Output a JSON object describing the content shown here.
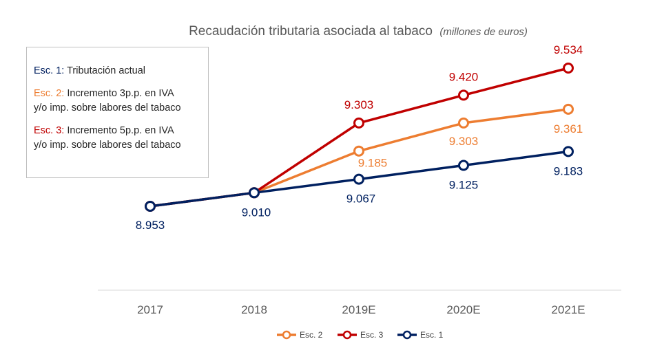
{
  "chart_data": {
    "type": "line",
    "title": "Recaudación tributaria asociada al tabaco",
    "subtitle": "(millones de euros)",
    "categories": [
      "2017",
      "2018",
      "2019E",
      "2020E",
      "2021E"
    ],
    "ylim": [
      8700,
      9600
    ],
    "grid": false,
    "series": [
      {
        "name": "Esc. 2",
        "color": "#ED7D31",
        "values": [
          8953,
          9010,
          9185,
          9303,
          9361
        ],
        "labels": [
          null,
          null,
          "9.185",
          "9.303",
          "9.361"
        ]
      },
      {
        "name": "Esc. 3",
        "color": "#C00000",
        "values": [
          8953,
          9010,
          9303,
          9420,
          9534
        ],
        "labels": [
          null,
          null,
          "9.303",
          "9.420",
          "9.534"
        ]
      },
      {
        "name": "Esc. 1",
        "color": "#002060",
        "values": [
          8953,
          9010,
          9067,
          9125,
          9183
        ],
        "labels": [
          "8.953",
          "9.010",
          "9.067",
          "9.125",
          "9.183"
        ]
      }
    ],
    "legend_position": "bottom"
  },
  "notes": [
    {
      "key": "Esc. 1:",
      "key_color": "#002060",
      "text": "Tributación actual"
    },
    {
      "key": "Esc. 2:",
      "key_color": "#ED7D31",
      "text": "Incremento 3p.p. en IVA",
      "text2": "y/o imp. sobre labores del tabaco"
    },
    {
      "key": "Esc. 3:",
      "key_color": "#C00000",
      "text": "Incremento 5p.p. en IVA",
      "text2": "y/o imp. sobre labores del tabaco"
    }
  ]
}
